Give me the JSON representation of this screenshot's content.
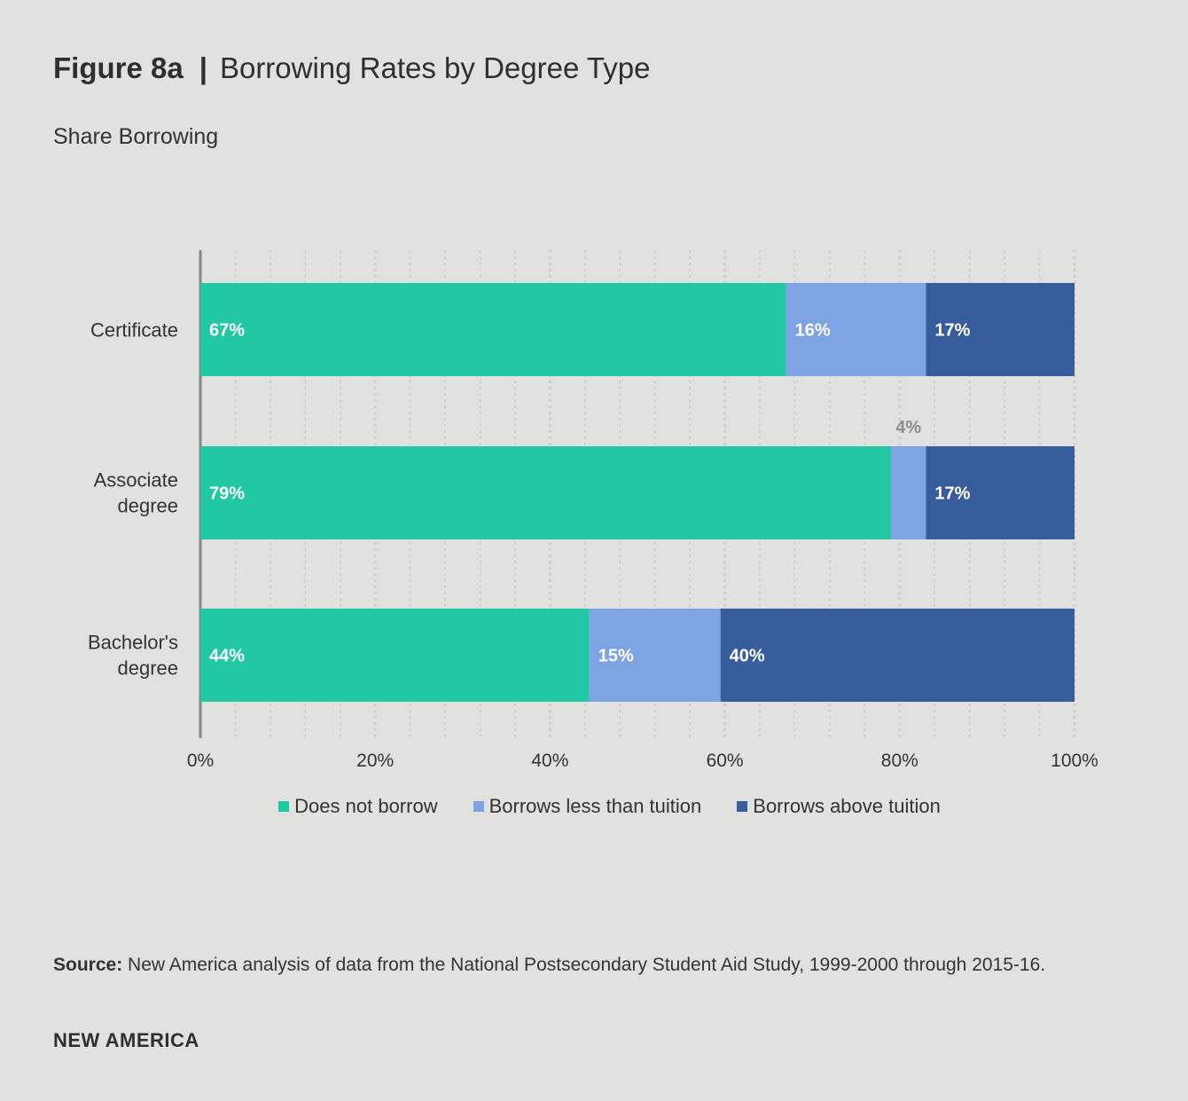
{
  "header": {
    "figure_label": "Figure 8a",
    "separator": "|",
    "title": "Borrowing Rates by Degree Type",
    "subtitle": "Share Borrowing"
  },
  "colors": {
    "does_not_borrow": "#22c7a3",
    "borrows_less": "#7ea3e2",
    "borrows_above": "#385d9d",
    "axis": "#888888",
    "grid": "#c9c9c7",
    "outside_label": "#8c8c8c",
    "inside_label": "#ffffff"
  },
  "chart_data": {
    "type": "bar",
    "orientation": "horizontal",
    "stacked": true,
    "title": "Borrowing Rates by Degree Type",
    "ylabel": "Share Borrowing",
    "categories": [
      [
        "Certificate"
      ],
      [
        "Associate",
        "degree"
      ],
      [
        "Bachelor's",
        "degree"
      ]
    ],
    "series": [
      {
        "name": "Does not borrow",
        "values": [
          67,
          79,
          44.5
        ],
        "labels": [
          "67%",
          "79%",
          "44%"
        ]
      },
      {
        "name": "Borrows less than tuition",
        "values": [
          16,
          4,
          15
        ],
        "labels": [
          "16%",
          "4%",
          "15%"
        ]
      },
      {
        "name": "Borrows above tuition",
        "values": [
          17,
          17,
          40.5
        ],
        "labels": [
          "17%",
          "17%",
          "40%"
        ]
      }
    ],
    "outside_labels": [
      [
        false,
        false,
        false
      ],
      [
        false,
        true,
        false
      ],
      [
        false,
        false,
        false
      ]
    ],
    "xlim": [
      0,
      100
    ],
    "xticks": [
      0,
      20,
      40,
      60,
      80,
      100
    ],
    "xtick_labels": [
      "0%",
      "20%",
      "40%",
      "60%",
      "80%",
      "100%"
    ],
    "grid": true,
    "legend_position": "bottom"
  },
  "legend": {
    "items": [
      {
        "label": "Does not borrow"
      },
      {
        "label": "Borrows less than tuition"
      },
      {
        "label": "Borrows above tuition"
      }
    ]
  },
  "footer": {
    "source_label": "Source:",
    "source_text": " New America analysis of data from the National Postsecondary Student Aid Study, 1999-2000 through 2015-16.",
    "brand": "NEW AMERICA"
  }
}
